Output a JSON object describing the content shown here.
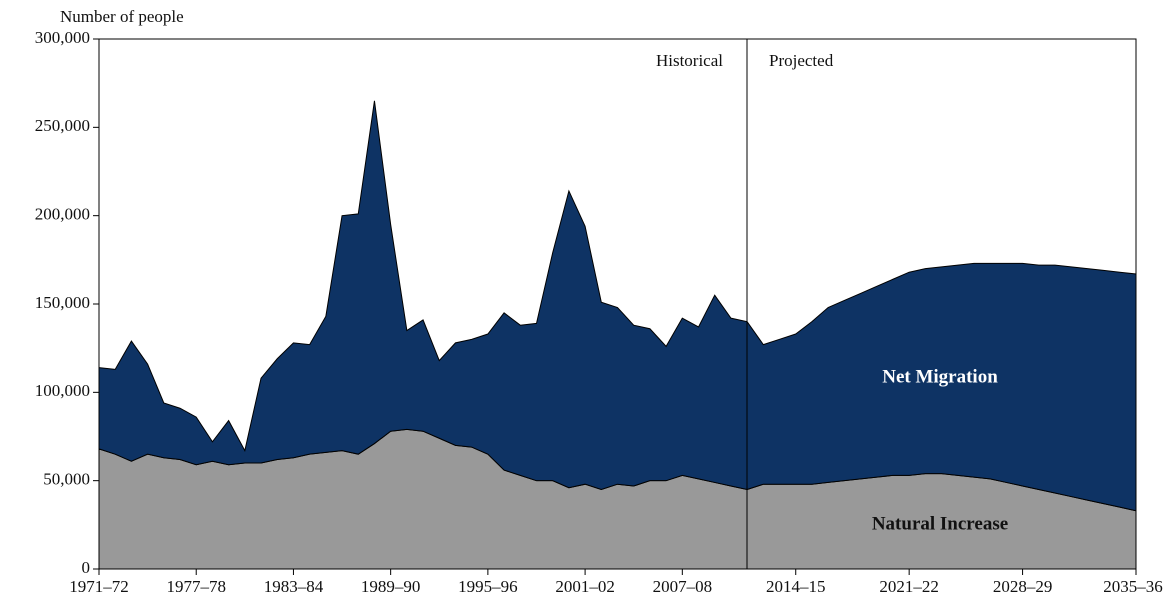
{
  "chart_data": {
    "type": "stacked_area",
    "y_axis_label": "Number of people",
    "annotations": [
      "Historical",
      "Projected"
    ],
    "categories": [
      "1971–72",
      null,
      null,
      null,
      null,
      null,
      "1977–78",
      null,
      null,
      null,
      null,
      null,
      "1983–84",
      null,
      null,
      null,
      null,
      null,
      "1989–90",
      null,
      null,
      null,
      null,
      null,
      "1995–96",
      null,
      null,
      null,
      null,
      null,
      "2001–02",
      null,
      null,
      null,
      null,
      null,
      "2007–08",
      null,
      null,
      null,
      null,
      null,
      null,
      "2014–15",
      null,
      null,
      null,
      null,
      null,
      null,
      "2021–22",
      null,
      null,
      null,
      null,
      null,
      null,
      "2028–29",
      null,
      null,
      null,
      null,
      null,
      null,
      "2035–36"
    ],
    "series": [
      {
        "name": "Natural Increase",
        "color": "#999999",
        "label_color": "#111111",
        "values": [
          68000,
          65000,
          61000,
          65000,
          63000,
          62000,
          59000,
          61000,
          59000,
          60000,
          60000,
          62000,
          63000,
          65000,
          66000,
          67000,
          65000,
          71000,
          78000,
          79000,
          78000,
          74000,
          70000,
          69000,
          65000,
          56000,
          53000,
          50000,
          50000,
          46000,
          48000,
          45000,
          48000,
          47000,
          50000,
          50000,
          53000,
          51000,
          49000,
          47000,
          45000,
          48000,
          48000,
          48000,
          48000,
          49000,
          50000,
          51000,
          52000,
          53000,
          53000,
          54000,
          54000,
          53000,
          52000,
          51000,
          49000,
          47000,
          45000,
          43000,
          41000,
          39000,
          37000,
          35000,
          33000
        ]
      },
      {
        "name": "Net Migration",
        "color": "#0e3364",
        "label_color": "#ffffff",
        "values": [
          46000,
          48000,
          68000,
          51000,
          31000,
          29000,
          27000,
          11000,
          25000,
          7000,
          48000,
          57000,
          65000,
          62000,
          77000,
          133000,
          136000,
          194000,
          117000,
          56000,
          63000,
          44000,
          58000,
          61000,
          68000,
          89000,
          85000,
          89000,
          129000,
          168000,
          146000,
          106000,
          100000,
          91000,
          86000,
          76000,
          89000,
          86000,
          106000,
          95000,
          95000,
          79000,
          82000,
          85000,
          92000,
          99000,
          102000,
          105000,
          108000,
          111000,
          115000,
          116000,
          117000,
          119000,
          121000,
          122000,
          124000,
          126000,
          127000,
          129000,
          130000,
          131000,
          132000,
          133000,
          134000
        ]
      }
    ],
    "ylim": [
      0,
      300000
    ],
    "yticks": [
      0,
      {
        "value": 50000,
        "label": "50,000"
      },
      {
        "value": 100000,
        "label": "100,000"
      },
      {
        "value": 150000,
        "label": "150,000"
      },
      {
        "value": 200000,
        "label": "200,000"
      },
      {
        "value": 250000,
        "label": "250,000"
      },
      {
        "value": 300000,
        "label": "300,000"
      }
    ],
    "grid": false
  }
}
